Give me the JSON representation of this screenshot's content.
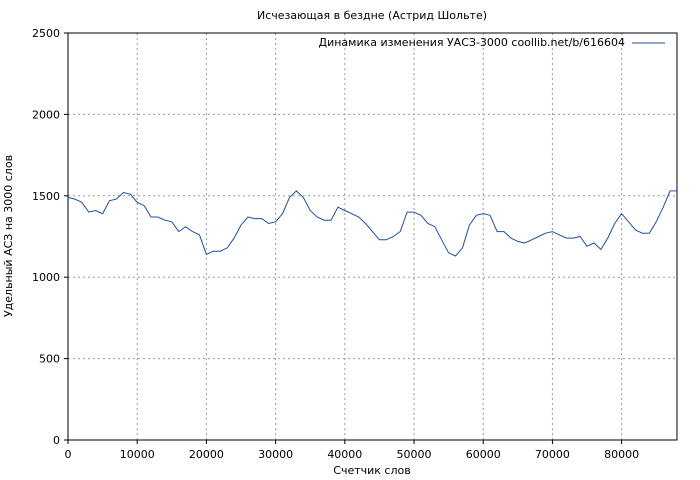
{
  "chart_data": {
    "type": "line",
    "title": "Исчезающая в бездне (Астрид Шольте)",
    "xlabel": "Счетчик слов",
    "ylabel": "Удельный АСЗ на 3000 слов",
    "xlim": [
      0,
      88000
    ],
    "ylim": [
      0,
      2500
    ],
    "grid": true,
    "legend_position": "top-right",
    "x_ticks": [
      "0",
      "10000",
      "20000",
      "30000",
      "40000",
      "50000",
      "60000",
      "70000",
      "80000"
    ],
    "y_ticks": [
      "0",
      "500",
      "1000",
      "1500",
      "2000",
      "2500"
    ],
    "series": [
      {
        "name": "Динамика изменения УАСЗ-3000 coollib.net/b/616604",
        "color": "#1f4f9f",
        "x": [
          0,
          1000,
          2000,
          3000,
          4000,
          5000,
          6000,
          7000,
          8000,
          9000,
          10000,
          11000,
          12000,
          13000,
          14000,
          15000,
          16000,
          17000,
          18000,
          19000,
          20000,
          21000,
          22000,
          23000,
          24000,
          25000,
          26000,
          27000,
          28000,
          29000,
          30000,
          31000,
          32000,
          33000,
          34000,
          35000,
          36000,
          37000,
          38000,
          39000,
          40000,
          41000,
          42000,
          43000,
          44000,
          45000,
          46000,
          47000,
          48000,
          49000,
          50000,
          51000,
          52000,
          53000,
          54000,
          55000,
          56000,
          57000,
          58000,
          59000,
          60000,
          61000,
          62000,
          63000,
          64000,
          65000,
          66000,
          67000,
          68000,
          69000,
          70000,
          71000,
          72000,
          73000,
          74000,
          75000,
          76000,
          77000,
          78000,
          79000,
          80000,
          81000,
          82000,
          83000,
          84000,
          85000,
          86000,
          87000,
          88000
        ],
        "y": [
          1490,
          1480,
          1460,
          1400,
          1410,
          1390,
          1470,
          1480,
          1520,
          1510,
          1460,
          1440,
          1370,
          1370,
          1350,
          1340,
          1280,
          1310,
          1280,
          1260,
          1140,
          1160,
          1160,
          1180,
          1240,
          1320,
          1370,
          1360,
          1360,
          1330,
          1340,
          1390,
          1490,
          1530,
          1490,
          1410,
          1370,
          1350,
          1350,
          1430,
          1410,
          1390,
          1370,
          1330,
          1280,
          1230,
          1230,
          1250,
          1280,
          1400,
          1400,
          1380,
          1330,
          1310,
          1230,
          1150,
          1130,
          1180,
          1320,
          1380,
          1390,
          1380,
          1280,
          1280,
          1240,
          1220,
          1210,
          1230,
          1250,
          1270,
          1280,
          1260,
          1240,
          1240,
          1250,
          1190,
          1210,
          1170,
          1240,
          1330,
          1390,
          1340,
          1290,
          1270,
          1270,
          1340,
          1430,
          1530,
          1530
        ]
      }
    ]
  }
}
